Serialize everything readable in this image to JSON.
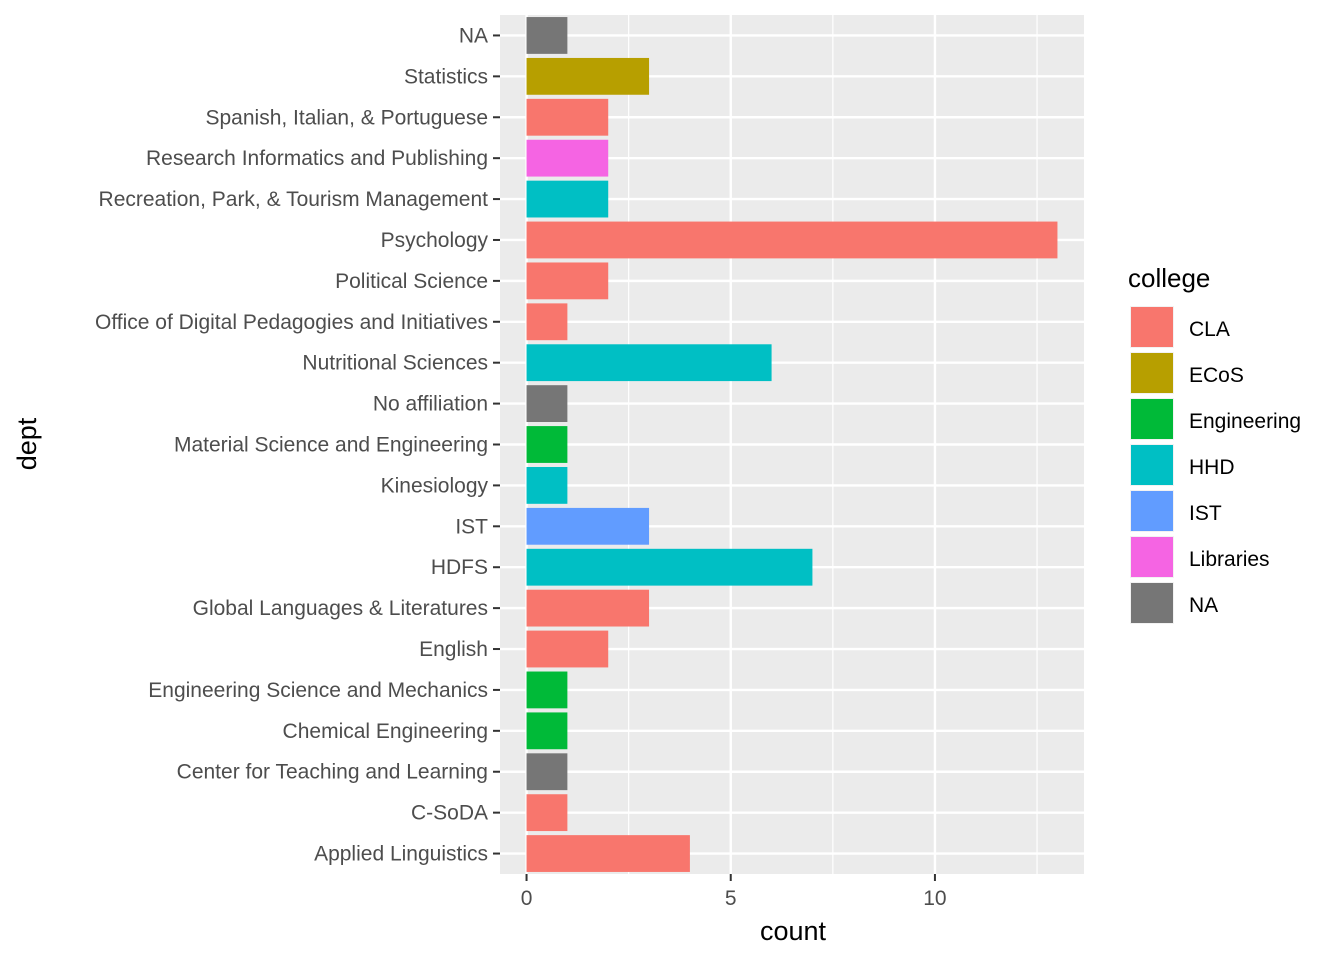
{
  "chart_data": {
    "type": "bar",
    "orientation": "horizontal",
    "xlabel": "count",
    "ylabel": "dept",
    "xlim": [
      -0.65,
      13.65
    ],
    "x_ticks": [
      0,
      5,
      10
    ],
    "x_minor_ticks": [
      2.5,
      7.5,
      12.5
    ],
    "grid": true,
    "legend_position": "right",
    "legend_title": "college",
    "legend": [
      {
        "name": "CLA",
        "color": "#F8766D"
      },
      {
        "name": "ECoS",
        "color": "#B79F00"
      },
      {
        "name": "Engineering",
        "color": "#00BA38"
      },
      {
        "name": "HHD",
        "color": "#00BFC4"
      },
      {
        "name": "IST",
        "color": "#619CFF"
      },
      {
        "name": "Libraries",
        "color": "#F564E3"
      },
      {
        "name": "NA",
        "color": "#767676"
      }
    ],
    "bars": [
      {
        "dept": "NA",
        "value": 1,
        "college": "NA"
      },
      {
        "dept": "Statistics",
        "value": 3,
        "college": "ECoS"
      },
      {
        "dept": "Spanish, Italian, & Portuguese",
        "value": 2,
        "college": "CLA"
      },
      {
        "dept": "Research Informatics and Publishing",
        "value": 2,
        "college": "Libraries"
      },
      {
        "dept": "Recreation, Park, & Tourism Management",
        "value": 2,
        "college": "HHD"
      },
      {
        "dept": "Psychology",
        "value": 13,
        "college": "CLA"
      },
      {
        "dept": "Political Science",
        "value": 2,
        "college": "CLA"
      },
      {
        "dept": "Office of Digital Pedagogies and Initiatives",
        "value": 1,
        "college": "CLA"
      },
      {
        "dept": "Nutritional Sciences",
        "value": 6,
        "college": "HHD"
      },
      {
        "dept": "No affiliation",
        "value": 1,
        "college": "NA"
      },
      {
        "dept": "Material Science and Engineering",
        "value": 1,
        "college": "Engineering"
      },
      {
        "dept": "Kinesiology",
        "value": 1,
        "college": "HHD"
      },
      {
        "dept": "IST",
        "value": 3,
        "college": "IST"
      },
      {
        "dept": "HDFS",
        "value": 7,
        "college": "HHD"
      },
      {
        "dept": "Global Languages & Literatures",
        "value": 3,
        "college": "CLA"
      },
      {
        "dept": "English",
        "value": 2,
        "college": "CLA"
      },
      {
        "dept": "Engineering Science and Mechanics",
        "value": 1,
        "college": "Engineering"
      },
      {
        "dept": "Chemical Engineering",
        "value": 1,
        "college": "Engineering"
      },
      {
        "dept": "Center for Teaching and Learning",
        "value": 1,
        "college": "NA"
      },
      {
        "dept": "C-SoDA",
        "value": 1,
        "college": "CLA"
      },
      {
        "dept": "Applied Linguistics",
        "value": 4,
        "college": "CLA"
      }
    ]
  }
}
